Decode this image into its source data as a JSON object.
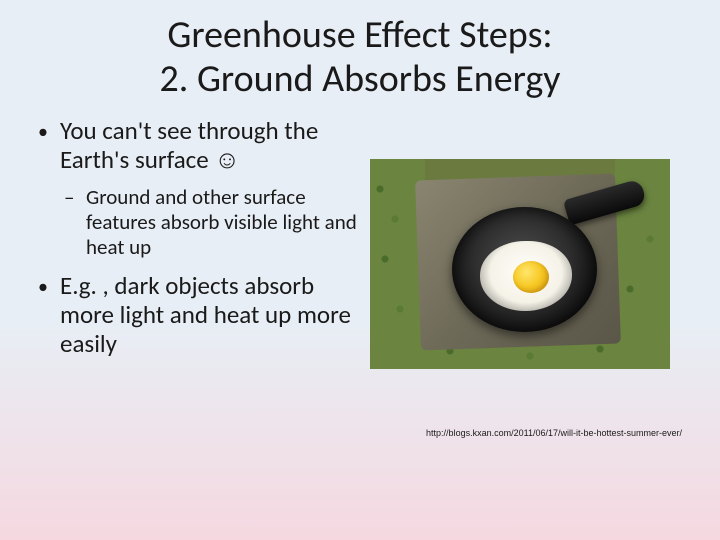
{
  "title_line1": "Greenhouse Effect Steps:",
  "title_line2": "2. Ground Absorbs Energy",
  "bullets": {
    "b1": "You can't see through the Earth's surface ☺",
    "b1sub": "Ground and other surface features absorb visible light and heat up",
    "b2": "E.g. , dark objects absorb more light and heat up more easily"
  },
  "image": {
    "description": "egg frying in cast iron pan on hot pavement tile surrounded by grass",
    "colors": {
      "grass": "#6b8440",
      "tile": "#6e6a58",
      "pan": "#151515",
      "egg_white": "#fefefa",
      "yolk": "#f6c722"
    }
  },
  "credit": "http://blogs.kxan.com/2011/06/17/will-it-be-hottest-summer-ever/",
  "background_gradient": {
    "top": "#e8eef5",
    "bottom": "#f5d8e0"
  }
}
